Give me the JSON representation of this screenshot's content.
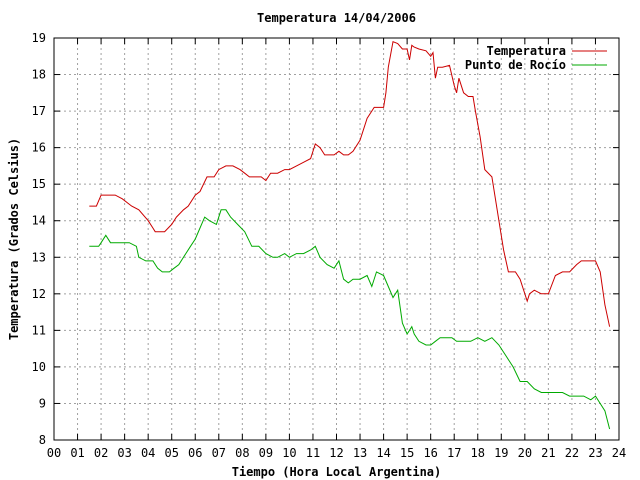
{
  "chart_data": {
    "type": "line",
    "title": "Temperatura 14/04/2006",
    "xlabel": "Tiempo (Hora Local Argentina)",
    "ylabel": "Temperatura (Grados Celsius)",
    "xlim": [
      0,
      24
    ],
    "ylim": [
      8,
      19
    ],
    "grid": true,
    "legend_position": "top-right",
    "x_ticks": [
      "00",
      "01",
      "02",
      "03",
      "04",
      "05",
      "06",
      "07",
      "08",
      "09",
      "10",
      "11",
      "12",
      "13",
      "14",
      "15",
      "16",
      "17",
      "18",
      "19",
      "20",
      "21",
      "22",
      "23",
      "24"
    ],
    "y_ticks": [
      "8",
      "9",
      "10",
      "11",
      "12",
      "13",
      "14",
      "15",
      "16",
      "17",
      "18",
      "19"
    ],
    "series": [
      {
        "name": "Temperatura",
        "color": "#cc0000",
        "x": [
          1.5,
          1.8,
          2.0,
          2.6,
          2.9,
          3.3,
          3.6,
          4.0,
          4.2,
          4.3,
          4.5,
          4.7,
          5.0,
          5.2,
          5.5,
          5.7,
          6.0,
          6.2,
          6.5,
          6.8,
          7.0,
          7.3,
          7.6,
          7.9,
          8.1,
          8.3,
          8.5,
          8.8,
          9.0,
          9.2,
          9.5,
          9.8,
          10.0,
          10.3,
          10.6,
          10.9,
          11.1,
          11.3,
          11.5,
          11.7,
          11.9,
          12.1,
          12.3,
          12.5,
          12.7,
          13.0,
          13.3,
          13.6,
          14.0,
          14.1,
          14.2,
          14.4,
          14.6,
          14.8,
          15.0,
          15.1,
          15.2,
          15.3,
          15.5,
          15.8,
          16.0,
          16.1,
          16.2,
          16.3,
          16.5,
          16.8,
          17.0,
          17.1,
          17.2,
          17.4,
          17.6,
          17.8,
          17.9,
          18.1,
          18.3,
          18.6,
          18.9,
          19.1,
          19.3,
          19.6,
          19.8,
          20.1,
          20.2,
          20.4,
          20.7,
          21.0,
          21.3,
          21.6,
          21.9,
          22.2,
          22.4,
          22.6,
          23.0,
          23.2,
          23.4,
          23.6
        ],
        "y": [
          14.4,
          14.4,
          14.7,
          14.7,
          14.6,
          14.4,
          14.3,
          14.0,
          13.8,
          13.7,
          13.7,
          13.7,
          13.9,
          14.1,
          14.3,
          14.4,
          14.7,
          14.8,
          15.2,
          15.2,
          15.4,
          15.5,
          15.5,
          15.4,
          15.3,
          15.2,
          15.2,
          15.2,
          15.1,
          15.3,
          15.3,
          15.4,
          15.4,
          15.5,
          15.6,
          15.7,
          16.1,
          16.0,
          15.8,
          15.8,
          15.8,
          15.9,
          15.8,
          15.8,
          15.9,
          16.2,
          16.8,
          17.1,
          17.1,
          17.5,
          18.2,
          18.9,
          18.85,
          18.7,
          18.7,
          18.4,
          18.8,
          18.75,
          18.7,
          18.65,
          18.5,
          18.6,
          17.9,
          18.2,
          18.2,
          18.25,
          17.7,
          17.5,
          17.9,
          17.5,
          17.4,
          17.4,
          17.0,
          16.3,
          15.4,
          15.2,
          14.0,
          13.2,
          12.6,
          12.6,
          12.4,
          11.8,
          12.0,
          12.1,
          12.0,
          12.0,
          12.5,
          12.6,
          12.6,
          12.8,
          12.9,
          12.9,
          12.9,
          12.6,
          11.7,
          11.1
        ]
      },
      {
        "name": "Punto de Rocío",
        "color": "#00aa00",
        "x": [
          1.5,
          1.9,
          2.0,
          2.2,
          2.4,
          2.8,
          3.2,
          3.5,
          3.6,
          3.9,
          4.2,
          4.4,
          4.6,
          4.9,
          5.1,
          5.3,
          5.6,
          5.8,
          6.0,
          6.2,
          6.4,
          6.6,
          6.9,
          7.1,
          7.3,
          7.5,
          7.8,
          8.1,
          8.4,
          8.7,
          9.0,
          9.3,
          9.5,
          9.8,
          10.0,
          10.3,
          10.6,
          10.9,
          11.1,
          11.3,
          11.6,
          11.9,
          12.1,
          12.3,
          12.5,
          12.7,
          13.0,
          13.3,
          13.5,
          13.7,
          14.0,
          14.2,
          14.4,
          14.6,
          14.8,
          15.0,
          15.1,
          15.2,
          15.3,
          15.5,
          15.8,
          16.0,
          16.2,
          16.4,
          16.6,
          16.9,
          17.1,
          17.4,
          17.7,
          18.0,
          18.3,
          18.6,
          18.9,
          19.2,
          19.5,
          19.8,
          20.1,
          20.4,
          20.7,
          21.0,
          21.3,
          21.6,
          21.9,
          22.2,
          22.5,
          22.8,
          23.0,
          23.2,
          23.4,
          23.6
        ],
        "y": [
          13.3,
          13.3,
          13.4,
          13.6,
          13.4,
          13.4,
          13.4,
          13.3,
          13.0,
          12.9,
          12.9,
          12.7,
          12.6,
          12.6,
          12.7,
          12.8,
          13.1,
          13.3,
          13.5,
          13.8,
          14.1,
          14.0,
          13.9,
          14.3,
          14.3,
          14.1,
          13.9,
          13.7,
          13.3,
          13.3,
          13.1,
          13.0,
          13.0,
          13.1,
          13.0,
          13.1,
          13.1,
          13.2,
          13.3,
          13.0,
          12.8,
          12.7,
          12.9,
          12.4,
          12.3,
          12.4,
          12.4,
          12.5,
          12.2,
          12.6,
          12.5,
          12.2,
          11.9,
          12.1,
          11.2,
          10.9,
          11.0,
          11.1,
          10.9,
          10.7,
          10.6,
          10.6,
          10.7,
          10.8,
          10.8,
          10.8,
          10.7,
          10.7,
          10.7,
          10.8,
          10.7,
          10.8,
          10.6,
          10.3,
          10.0,
          9.6,
          9.6,
          9.4,
          9.3,
          9.3,
          9.3,
          9.3,
          9.2,
          9.2,
          9.2,
          9.1,
          9.2,
          9.0,
          8.8,
          8.3
        ]
      }
    ]
  }
}
